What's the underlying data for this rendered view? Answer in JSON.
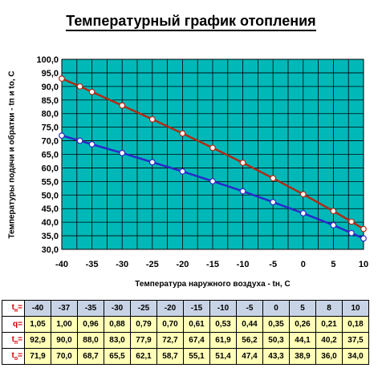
{
  "chart_data": {
    "type": "line",
    "title": "Температурный график отопления",
    "xlabel": "Температура наружного воздуха - tн, С",
    "ylabel": "Температуры подачи и обратки - tп и tо, С",
    "xlim": [
      -40,
      10
    ],
    "ylim": [
      30,
      100
    ],
    "x_ticks": [
      "-40",
      "-35",
      "-30",
      "-25",
      "-20",
      "-15",
      "-10",
      "-5",
      "0",
      "5",
      "10"
    ],
    "y_ticks": [
      "30,0",
      "35,0",
      "40,0",
      "45,0",
      "50,0",
      "55,0",
      "60,0",
      "65,0",
      "70,0",
      "75,0",
      "80,0",
      "85,0",
      "90,0",
      "95,0",
      "100,0"
    ],
    "grid": true,
    "x": [
      -40,
      -37,
      -35,
      -30,
      -25,
      -20,
      -15,
      -10,
      -5,
      0,
      5,
      8,
      10
    ],
    "series": [
      {
        "values": [
          92.9,
          90.0,
          88.0,
          83.0,
          77.9,
          72.7,
          67.4,
          61.9,
          56.2,
          50.3,
          44.1,
          40.2,
          37.5
        ],
        "color": "#b22a14"
      },
      {
        "values": [
          71.9,
          70.0,
          68.7,
          65.5,
          62.1,
          58.7,
          55.1,
          51.4,
          47.4,
          43.3,
          38.9,
          36.0,
          34.0
        ],
        "color": "#2c28c8"
      }
    ],
    "colors": {
      "plot_bg": "#00b8b8",
      "grid": "#000000",
      "marker": "#ffffff"
    }
  },
  "table": {
    "labels": {
      "tn": {
        "main": "t",
        "sub": "н",
        "tail": "="
      },
      "q": {
        "main": "q",
        "sub": "",
        "tail": "="
      },
      "tp": {
        "main": "t",
        "sub": "п",
        "tail": "="
      },
      "to": {
        "main": "t",
        "sub": "о",
        "tail": "="
      }
    },
    "rows": {
      "tn": [
        "-40",
        "-37",
        "-35",
        "-30",
        "-25",
        "-20",
        "-15",
        "-10",
        "-5",
        "0",
        "5",
        "8",
        "10"
      ],
      "q": [
        "1,05",
        "1,00",
        "0,96",
        "0,88",
        "0,79",
        "0,70",
        "0,61",
        "0,53",
        "0,44",
        "0,35",
        "0,26",
        "0,21",
        "0,18"
      ],
      "tp": [
        "92,9",
        "90,0",
        "88,0",
        "83,0",
        "77,9",
        "72,7",
        "67,4",
        "61,9",
        "56,2",
        "50,3",
        "44,1",
        "40,2",
        "37,5"
      ],
      "to": [
        "71,9",
        "70,0",
        "68,7",
        "65,5",
        "62,1",
        "58,7",
        "55,1",
        "51,4",
        "47,4",
        "43,3",
        "38,9",
        "36,0",
        "34,0"
      ]
    }
  }
}
